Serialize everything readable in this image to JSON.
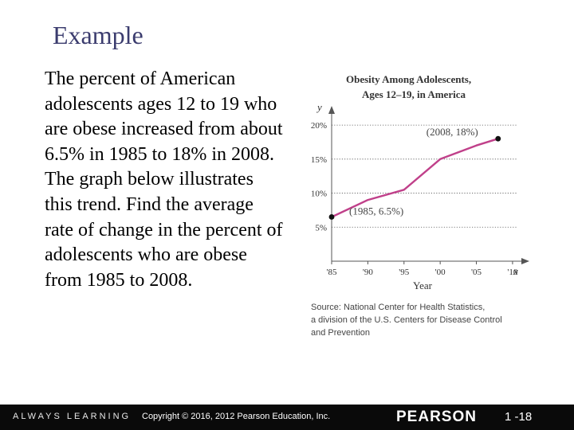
{
  "slide": {
    "title": "Example",
    "body": "The percent of American adolescents ages 12 to 19 who are obese increased from about 6.5% in 1985 to 18% in 2008. The graph below illustrates this trend. Find the average rate of change in the percent of adolescents who are obese from 1985 to 2008."
  },
  "chart_data": {
    "type": "line",
    "title_lines": [
      "Obesity Among Adolescents,",
      "Ages 12–19, in America"
    ],
    "xlabel": "Year",
    "ylabel": "y",
    "x_axis_var": "x",
    "x": [
      1985,
      1990,
      1995,
      2000,
      2005,
      2008
    ],
    "y": [
      6.5,
      9,
      10.5,
      15,
      17,
      18
    ],
    "x_ticks": [
      1985,
      1990,
      1995,
      2000,
      2005,
      2010
    ],
    "x_tick_labels": [
      "'85",
      "'90",
      "'95",
      "'00",
      "'05",
      "'10"
    ],
    "y_ticks": [
      5,
      10,
      15,
      20
    ],
    "y_tick_labels": [
      "5%",
      "10%",
      "15%",
      "20%"
    ],
    "xlim": [
      1985,
      2011
    ],
    "ylim": [
      0,
      22
    ],
    "grid": "horizontal-dotted",
    "line_color": "#c0408a",
    "annotations": [
      {
        "x": 1985,
        "y": 6.5,
        "label": "(1985, 6.5%)"
      },
      {
        "x": 2008,
        "y": 18,
        "label": "(2008, 18%)"
      }
    ],
    "source": [
      "Source: National Center for Health Statistics,",
      "a division of the U.S. Centers for Disease Control",
      "and Prevention"
    ]
  },
  "footer": {
    "always_learning": "ALWAYS LEARNING",
    "copyright": "Copyright © 2016, 2012 Pearson Education, Inc.",
    "brand": "PEARSON",
    "slide_number": "1 -18"
  }
}
